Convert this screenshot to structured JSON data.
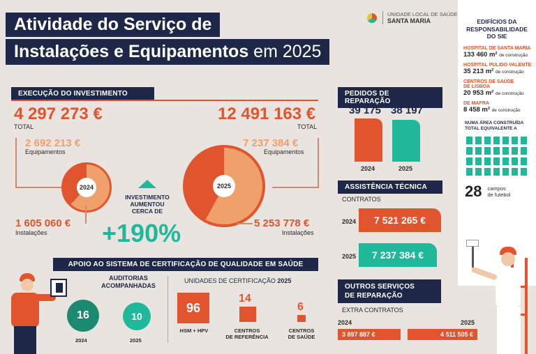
{
  "header": {
    "title_line1": "Atividade do Serviço de",
    "title_line2": "Instalações e Equipamentos",
    "title_year": "em 2025",
    "logo_line1": "UNIDADE LOCAL DE SAÚDE",
    "logo_line2": "SANTA MARIA"
  },
  "investimento": {
    "heading": "EXECUÇÃO DO INVESTIMENTO",
    "total_2024": "4 297 273 €",
    "total_2025": "12 491 163 €",
    "total_label": "TOTAL",
    "equip_2024": "2 692 213 €",
    "equip_2025": "7 237 384 €",
    "equip_label": "Equipamentos",
    "inst_2024": "1 605 060 €",
    "inst_2025": "5 253 778 €",
    "inst_label": "Instalações",
    "year_2024": "2024",
    "year_2025": "2025",
    "increase_text_1": "INVESTIMENTO",
    "increase_text_2": "AUMENTOU",
    "increase_text_3": "CERCA DE",
    "increase_value": "+190%"
  },
  "pedidos": {
    "heading": "PEDIDOS DE REPARAÇÃO",
    "value_2024": "39 175",
    "value_2025": "38 197",
    "year_2024": "2024",
    "year_2025": "2025"
  },
  "assistencia": {
    "heading": "ASSISTÊNCIA TÉCNICA",
    "sub": "CONTRATOS",
    "year_2024": "2024",
    "year_2025": "2025",
    "value_2024": "7 521 265 €",
    "value_2025": "7 237 384 €"
  },
  "outros": {
    "heading_1": "OUTROS SERVIÇOS",
    "heading_2": "DE REPARAÇÃO",
    "sub": "EXTRA CONTRATOS",
    "year_2024": "2024",
    "year_2025": "2025",
    "value_2024": "3 897 887 €",
    "value_2025": "4 511 505 €"
  },
  "certificacao": {
    "heading": "APOIO AO SISTEMA DE CERTIFICAÇÃO DE QUALIDADE EM SAÚDE",
    "auditorias_1": "AUDITORIAS",
    "auditorias_2": "ACOMPANHADAS",
    "aud_2024": "16",
    "aud_2025": "10",
    "year_2024": "2024",
    "year_2025": "2025",
    "unidades_label": "UNIDADES DE CERTIFICAÇÃO",
    "unidades_year": "2025",
    "u1_value": "96",
    "u1_label": "HSM + HPV",
    "u2_value": "14",
    "u2_label_1": "CENTROS",
    "u2_label_2": "DE REFERÊNCIA",
    "u3_value": "6",
    "u3_label_1": "CENTROS",
    "u3_label_2": "DE SAÚDE"
  },
  "edificios": {
    "title_1": "EDIFÍCIOS DA",
    "title_2": "RESPONSABILIDADE",
    "title_3": "DO SIE",
    "items": [
      {
        "cat": "HOSPITAL DE SANTA MARIA",
        "val": "133 460 m²",
        "suffix": "de construção"
      },
      {
        "cat": "HOSPITAL PULIDO VALENTE",
        "val": "35 213 m²",
        "suffix": "de construção"
      },
      {
        "cat": "CENTROS DE SAÚDE",
        "cat2": "DE LISBOA",
        "val": "20 953 m²",
        "suffix": "de construção"
      },
      {
        "cat": "DE MAFRA",
        "val": "8 458 m²",
        "suffix": "de construção"
      }
    ],
    "area_1": "NUMA ÁREA CONSTRUÍDA",
    "area_2": "TOTAL EQUIVALENTE A",
    "campos_value": "28",
    "campos_1": "campos",
    "campos_2": "de futebol"
  },
  "colors": {
    "navy": "#1e2748",
    "orange": "#e0552e",
    "teal": "#1fb89a",
    "light_orange": "#f0a06a"
  }
}
